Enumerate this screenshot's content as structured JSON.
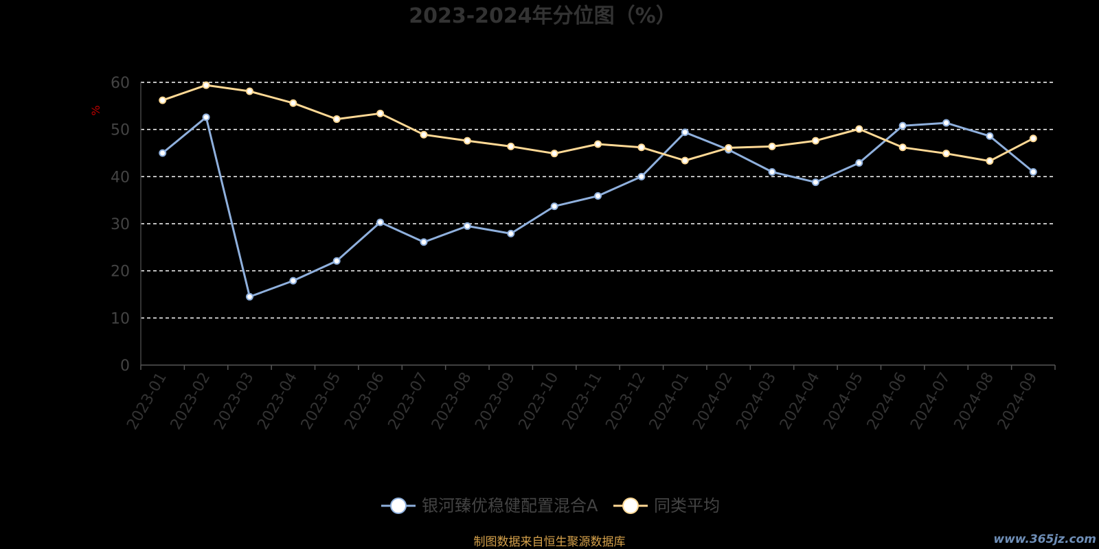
{
  "chart_data": {
    "type": "line",
    "title": "2023-2024年分位图（%）",
    "ylabel": "%",
    "ylim": [
      0,
      60
    ],
    "yticks": [
      "0",
      "10",
      "20",
      "30",
      "40",
      "50",
      "60"
    ],
    "grid": true,
    "legend_position": "bottom",
    "categories": [
      "2023-01",
      "2023-02",
      "2023-03",
      "2023-04",
      "2023-05",
      "2023-06",
      "2023-07",
      "2023-08",
      "2023-09",
      "2023-10",
      "2023-11",
      "2023-12",
      "2024-01",
      "2024-02",
      "2024-03",
      "2024-04",
      "2024-05",
      "2024-06",
      "2024-07",
      "2024-08",
      "2024-09"
    ],
    "series": [
      {
        "name": "银河臻优稳健配置混合A",
        "color": "#8fb0dd",
        "values": [
          45.0,
          52.6,
          14.5,
          17.9,
          22.1,
          30.3,
          26.1,
          29.5,
          27.9,
          33.7,
          35.9,
          40.0,
          49.4,
          45.7,
          41.0,
          38.8,
          42.9,
          50.8,
          51.4,
          48.6,
          41.0
        ]
      },
      {
        "name": "同类平均",
        "color": "#ffd995",
        "values": [
          56.2,
          59.4,
          58.1,
          55.6,
          52.2,
          53.4,
          48.9,
          47.6,
          46.4,
          44.9,
          46.9,
          46.2,
          43.4,
          46.1,
          46.4,
          47.6,
          50.1,
          46.2,
          44.9,
          43.3,
          48.1
        ]
      }
    ]
  },
  "footer": {
    "source": "制图数据来自恒生聚源数据库",
    "watermark": "www.365jz.com"
  }
}
